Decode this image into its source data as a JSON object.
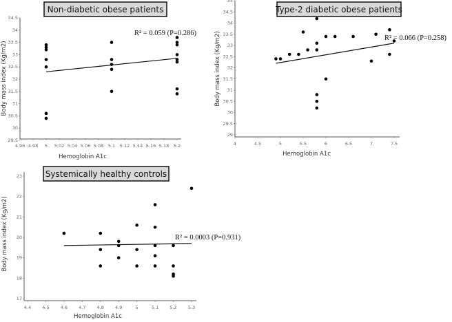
{
  "chart_data": [
    {
      "type": "scatter",
      "title": "Non-diabetic obese patients",
      "xlabel": "Hemoglobin A1c",
      "ylabel": "Body mass index (Kg/m2)",
      "xlim": [
        4.96,
        5.22
      ],
      "ylim": [
        29.5,
        34.5
      ],
      "xticks": [
        "4.96",
        "4.98",
        "5",
        "5.02",
        "5.04",
        "5.06",
        "5.08",
        "5.1",
        "5.12",
        "5.14",
        "5.16",
        "5.18",
        "5.2"
      ],
      "yticks": [
        "29.5",
        "30",
        "30.5",
        "31",
        "31.5",
        "32",
        "32.5",
        "33",
        "33.5",
        "34",
        "34.5"
      ],
      "annotation": "R² = 0.059 (P=0.286)",
      "trendline": [
        [
          5.0,
          32.3
        ],
        [
          5.2,
          32.85
        ]
      ],
      "points": [
        [
          5,
          33.4
        ],
        [
          5,
          33.3
        ],
        [
          5,
          33.2
        ],
        [
          5,
          32.8
        ],
        [
          5,
          32.5
        ],
        [
          5,
          30.6
        ],
        [
          5,
          30.4
        ],
        [
          5.1,
          33.5
        ],
        [
          5.1,
          32.8
        ],
        [
          5.1,
          32.6
        ],
        [
          5.1,
          32.4
        ],
        [
          5.1,
          31.5
        ],
        [
          5.2,
          33.7
        ],
        [
          5.2,
          33.5
        ],
        [
          5.2,
          33.4
        ],
        [
          5.2,
          33.0
        ],
        [
          5.2,
          32.8
        ],
        [
          5.2,
          32.7
        ],
        [
          5.2,
          31.6
        ],
        [
          5.2,
          31.4
        ]
      ],
      "grid": false
    },
    {
      "type": "scatter",
      "title": "Type-2 diabetic obese patients",
      "xlabel": "Hemoglobin A1c",
      "ylabel": "Body mass index (Kg/m2)",
      "xlim": [
        4,
        7.6
      ],
      "ylim": [
        29,
        35
      ],
      "xticks": [
        "4",
        "4.5",
        "5",
        "5.5",
        "6",
        "6.5",
        "7",
        "7.5"
      ],
      "yticks": [
        "29",
        "29.5",
        "30",
        "30.5",
        "31",
        "31.5",
        "32",
        "32.5",
        "33",
        "33.5",
        "34",
        "34.5",
        "35"
      ],
      "annotation": "R² = 0.066 (P=0.258)",
      "trendline": [
        [
          4.9,
          32.2
        ],
        [
          7.5,
          33.1
        ]
      ],
      "points": [
        [
          4.9,
          32.4
        ],
        [
          5.0,
          32.4
        ],
        [
          5.2,
          32.6
        ],
        [
          5.4,
          32.6
        ],
        [
          5.5,
          33.6
        ],
        [
          5.6,
          32.8
        ],
        [
          5.8,
          34.2
        ],
        [
          5.8,
          33.1
        ],
        [
          5.8,
          32.8
        ],
        [
          5.8,
          30.8
        ],
        [
          5.8,
          30.5
        ],
        [
          5.8,
          30.2
        ],
        [
          6.0,
          33.4
        ],
        [
          6.0,
          31.5
        ],
        [
          6.2,
          33.4
        ],
        [
          6.6,
          33.4
        ],
        [
          7.0,
          32.3
        ],
        [
          7.1,
          33.5
        ],
        [
          7.4,
          33.7
        ],
        [
          7.4,
          32.6
        ],
        [
          7.5,
          33.2
        ]
      ],
      "grid": false
    },
    {
      "type": "scatter",
      "title": "Systemically healthy controls",
      "xlabel": "Hemoglobin A1c",
      "ylabel": "Body mass index (Kg/m2)",
      "xlim": [
        4.4,
        5.33
      ],
      "ylim": [
        17,
        23
      ],
      "xticks": [
        "4.4",
        "4.5",
        "4.6",
        "4.7",
        "4.8",
        "4.9",
        "5",
        "5.1",
        "5.2",
        "5.3"
      ],
      "yticks": [
        "17",
        "18",
        "19",
        "20",
        "21",
        "22",
        "23"
      ],
      "annotation": "R² = 0.0003 (P=0.931)",
      "trendline": [
        [
          4.6,
          19.6
        ],
        [
          5.3,
          19.7
        ]
      ],
      "points": [
        [
          4.6,
          20.2
        ],
        [
          4.8,
          20.2
        ],
        [
          4.8,
          19.4
        ],
        [
          4.8,
          18.6
        ],
        [
          4.9,
          19.8
        ],
        [
          4.9,
          19.6
        ],
        [
          4.9,
          19.0
        ],
        [
          5.0,
          20.6
        ],
        [
          5.0,
          19.4
        ],
        [
          5.0,
          18.6
        ],
        [
          5.1,
          21.6
        ],
        [
          5.1,
          20.5
        ],
        [
          5.1,
          19.6
        ],
        [
          5.1,
          19.1
        ],
        [
          5.1,
          18.6
        ],
        [
          5.2,
          19.6
        ],
        [
          5.2,
          18.6
        ],
        [
          5.2,
          18.2
        ],
        [
          5.2,
          18.1
        ],
        [
          5.3,
          22.4
        ]
      ],
      "grid": false
    }
  ]
}
